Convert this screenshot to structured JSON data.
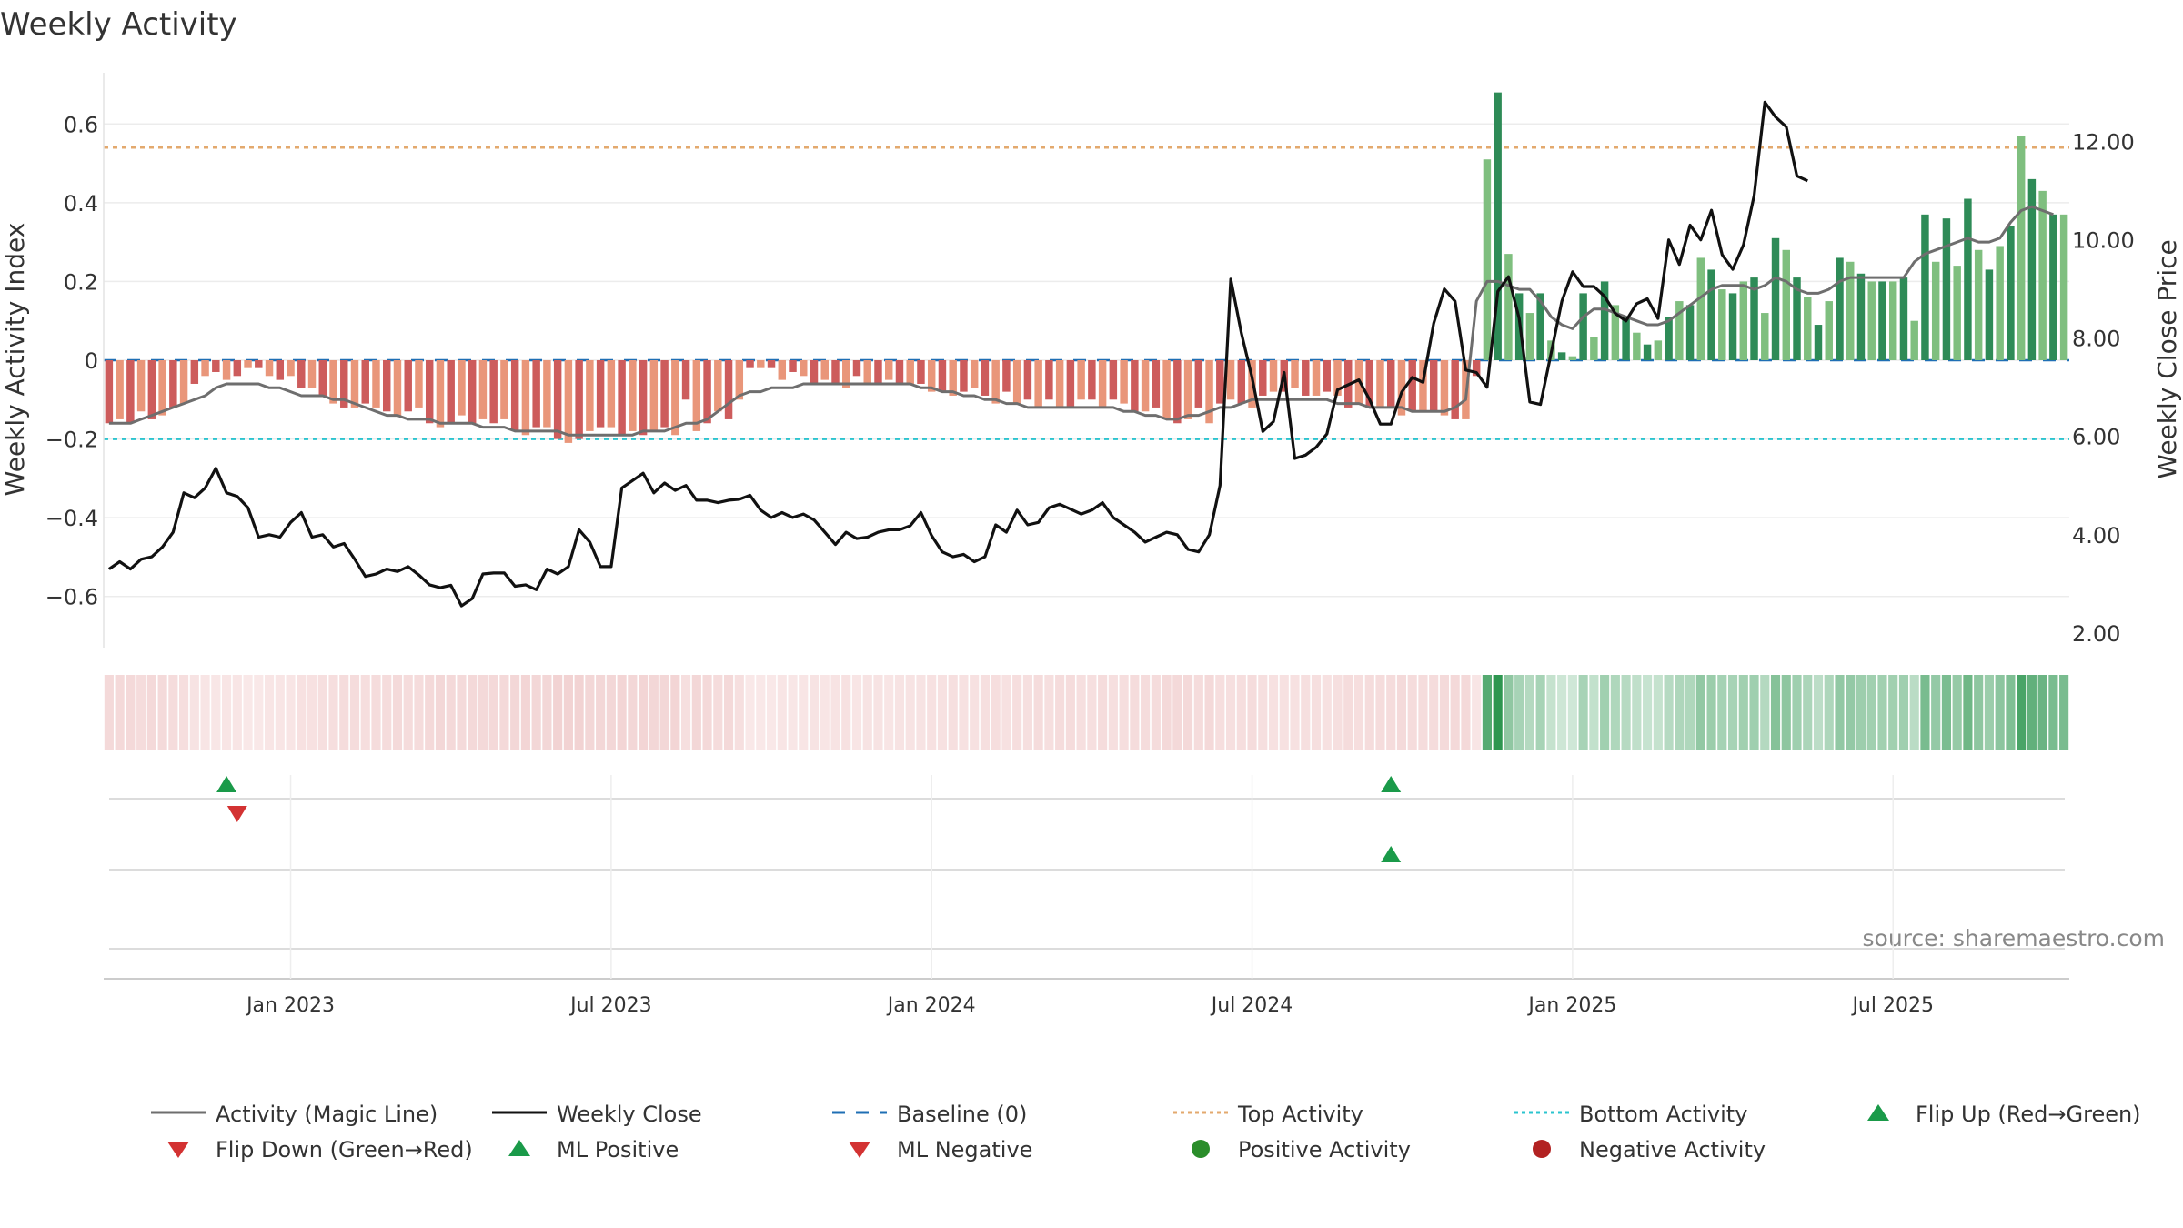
{
  "chart_data": {
    "type": "bar",
    "title": "Weekly Activity",
    "ylabel": "Weekly Activity Index",
    "y2label": "Weekly Close Price",
    "source": "source: sharemaestro.com",
    "ylim": [
      -0.73,
      0.73
    ],
    "y2lim": [
      1.7,
      13.4
    ],
    "yticks": [
      {
        "v": 0.6,
        "label": "0.6"
      },
      {
        "v": 0.4,
        "label": "0.4"
      },
      {
        "v": 0.2,
        "label": "0.2"
      },
      {
        "v": 0,
        "label": "0"
      },
      {
        "v": -0.2,
        "label": "−0.2"
      },
      {
        "v": -0.4,
        "label": "−0.4"
      },
      {
        "v": -0.6,
        "label": "−0.6"
      }
    ],
    "y2ticks": [
      {
        "v": 12,
        "label": "12.00"
      },
      {
        "v": 10,
        "label": "10.00"
      },
      {
        "v": 8,
        "label": "8.00"
      },
      {
        "v": 6,
        "label": "6.00"
      },
      {
        "v": 4,
        "label": "4.00"
      },
      {
        "v": 2,
        "label": "2.00"
      }
    ],
    "xticks": [
      {
        "week": 17,
        "label": "Jan 2023"
      },
      {
        "week": 47,
        "label": "Jul 2023"
      },
      {
        "week": 77,
        "label": "Jan 2024"
      },
      {
        "week": 107,
        "label": "Jul 2024"
      },
      {
        "week": 137,
        "label": "Jan 2025"
      },
      {
        "week": 167,
        "label": "Jul 2025"
      }
    ],
    "top_activity": 0.54,
    "bottom_activity": -0.2,
    "activity": [
      -0.16,
      -0.15,
      -0.16,
      -0.13,
      -0.15,
      -0.14,
      -0.12,
      -0.11,
      -0.06,
      -0.04,
      -0.03,
      -0.05,
      -0.04,
      -0.02,
      -0.02,
      -0.04,
      -0.05,
      -0.04,
      -0.07,
      -0.07,
      -0.09,
      -0.11,
      -0.12,
      -0.12,
      -0.11,
      -0.12,
      -0.13,
      -0.14,
      -0.13,
      -0.12,
      -0.16,
      -0.17,
      -0.16,
      -0.14,
      -0.16,
      -0.15,
      -0.16,
      -0.15,
      -0.18,
      -0.19,
      -0.17,
      -0.17,
      -0.2,
      -0.21,
      -0.2,
      -0.18,
      -0.17,
      -0.17,
      -0.19,
      -0.18,
      -0.19,
      -0.18,
      -0.17,
      -0.19,
      -0.1,
      -0.18,
      -0.16,
      -0.13,
      -0.15,
      -0.1,
      -0.02,
      -0.02,
      -0.02,
      -0.05,
      -0.03,
      -0.04,
      -0.06,
      -0.05,
      -0.06,
      -0.07,
      -0.04,
      -0.06,
      -0.06,
      -0.05,
      -0.06,
      -0.06,
      -0.06,
      -0.08,
      -0.08,
      -0.09,
      -0.08,
      -0.07,
      -0.09,
      -0.11,
      -0.08,
      -0.11,
      -0.1,
      -0.12,
      -0.1,
      -0.12,
      -0.12,
      -0.1,
      -0.1,
      -0.12,
      -0.1,
      -0.11,
      -0.13,
      -0.13,
      -0.12,
      -0.15,
      -0.16,
      -0.15,
      -0.12,
      -0.16,
      -0.11,
      -0.1,
      -0.11,
      -0.12,
      -0.09,
      -0.08,
      -0.08,
      -0.07,
      -0.09,
      -0.09,
      -0.08,
      -0.09,
      -0.12,
      -0.11,
      -0.12,
      -0.12,
      -0.12,
      -0.14,
      -0.13,
      -0.13,
      -0.13,
      -0.14,
      -0.15,
      -0.15,
      -0.04,
      0.51,
      0.68,
      0.27,
      0.17,
      0.12,
      0.17,
      0.05,
      0.02,
      0.01,
      0.17,
      0.06,
      0.2,
      0.14,
      0.11,
      0.07,
      0.04,
      0.05,
      0.11,
      0.15,
      0.14,
      0.26,
      0.23,
      0.18,
      0.17,
      0.2,
      0.21,
      0.12,
      0.31,
      0.28,
      0.21,
      0.16,
      0.09,
      0.15,
      0.26,
      0.25,
      0.22,
      0.2,
      0.2,
      0.2,
      0.21,
      0.1,
      0.37,
      0.25,
      0.36,
      0.24,
      0.41,
      0.28,
      0.23,
      0.29,
      0.34,
      0.57,
      0.46,
      0.43,
      0.37,
      0.37
    ],
    "magic_line": [
      -0.16,
      -0.16,
      -0.16,
      -0.15,
      -0.14,
      -0.13,
      -0.12,
      -0.11,
      -0.1,
      -0.09,
      -0.07,
      -0.06,
      -0.06,
      -0.06,
      -0.06,
      -0.07,
      -0.07,
      -0.08,
      -0.09,
      -0.09,
      -0.09,
      -0.1,
      -0.1,
      -0.11,
      -0.12,
      -0.13,
      -0.14,
      -0.14,
      -0.15,
      -0.15,
      -0.15,
      -0.16,
      -0.16,
      -0.16,
      -0.16,
      -0.17,
      -0.17,
      -0.17,
      -0.18,
      -0.18,
      -0.18,
      -0.18,
      -0.18,
      -0.19,
      -0.19,
      -0.19,
      -0.19,
      -0.19,
      -0.19,
      -0.19,
      -0.18,
      -0.18,
      -0.18,
      -0.17,
      -0.16,
      -0.16,
      -0.15,
      -0.13,
      -0.11,
      -0.09,
      -0.08,
      -0.08,
      -0.07,
      -0.07,
      -0.07,
      -0.06,
      -0.06,
      -0.06,
      -0.06,
      -0.06,
      -0.06,
      -0.06,
      -0.06,
      -0.06,
      -0.06,
      -0.06,
      -0.07,
      -0.07,
      -0.08,
      -0.08,
      -0.09,
      -0.09,
      -0.1,
      -0.1,
      -0.11,
      -0.11,
      -0.12,
      -0.12,
      -0.12,
      -0.12,
      -0.12,
      -0.12,
      -0.12,
      -0.12,
      -0.12,
      -0.13,
      -0.13,
      -0.14,
      -0.14,
      -0.15,
      -0.15,
      -0.14,
      -0.14,
      -0.13,
      -0.12,
      -0.12,
      -0.11,
      -0.1,
      -0.1,
      -0.1,
      -0.1,
      -0.1,
      -0.1,
      -0.1,
      -0.1,
      -0.11,
      -0.11,
      -0.11,
      -0.12,
      -0.12,
      -0.12,
      -0.12,
      -0.13,
      -0.13,
      -0.13,
      -0.13,
      -0.12,
      -0.1,
      0.15,
      0.2,
      0.2,
      0.19,
      0.18,
      0.18,
      0.15,
      0.11,
      0.09,
      0.08,
      0.11,
      0.13,
      0.13,
      0.12,
      0.11,
      0.1,
      0.09,
      0.09,
      0.1,
      0.12,
      0.14,
      0.16,
      0.18,
      0.19,
      0.19,
      0.19,
      0.18,
      0.19,
      0.21,
      0.2,
      0.18,
      0.17,
      0.17,
      0.18,
      0.2,
      0.21,
      0.21,
      0.21,
      0.21,
      0.21,
      0.21,
      0.25,
      0.27,
      0.28,
      0.29,
      0.3,
      0.31,
      0.3,
      0.3,
      0.31,
      0.35,
      0.38,
      0.39,
      0.38,
      0.37
    ],
    "close": [
      3.3,
      3.45,
      3.3,
      3.5,
      3.55,
      3.75,
      4.05,
      4.85,
      4.75,
      4.95,
      5.35,
      4.85,
      4.78,
      4.55,
      3.95,
      4.0,
      3.95,
      4.25,
      4.45,
      3.95,
      4.0,
      3.75,
      3.82,
      3.5,
      3.15,
      3.2,
      3.3,
      3.25,
      3.35,
      3.18,
      2.98,
      2.92,
      2.97,
      2.55,
      2.7,
      3.2,
      3.22,
      3.22,
      2.95,
      2.98,
      2.88,
      3.3,
      3.2,
      3.35,
      4.1,
      3.85,
      3.35,
      3.35,
      4.95,
      5.1,
      5.25,
      4.85,
      5.05,
      4.9,
      5.0,
      4.7,
      4.7,
      4.65,
      4.7,
      4.72,
      4.8,
      4.5,
      4.35,
      4.45,
      4.35,
      4.42,
      4.3,
      4.05,
      3.8,
      4.05,
      3.92,
      3.95,
      4.05,
      4.1,
      4.1,
      4.18,
      4.45,
      3.98,
      3.65,
      3.55,
      3.6,
      3.45,
      3.55,
      4.2,
      4.05,
      4.5,
      4.2,
      4.25,
      4.55,
      4.62,
      4.52,
      4.42,
      4.5,
      4.65,
      4.35,
      4.2,
      4.05,
      3.85,
      3.95,
      4.05,
      4.0,
      3.7,
      3.65,
      4.0,
      5.0,
      9.2,
      8.1,
      7.2,
      6.1,
      6.3,
      7.3,
      5.55,
      5.62,
      5.78,
      6.05,
      6.95,
      7.05,
      7.15,
      6.75,
      6.25,
      6.25,
      6.9,
      7.2,
      7.1,
      8.3,
      9.0,
      8.75,
      7.35,
      7.3,
      7.0,
      8.95,
      9.25,
      8.4,
      6.7,
      6.65,
      7.7,
      8.75,
      9.35,
      9.05,
      9.05,
      8.85,
      8.5,
      8.35,
      8.7,
      8.8,
      8.4,
      10.0,
      9.5,
      10.3,
      10.0,
      10.6,
      9.7,
      9.4,
      9.9,
      10.9,
      12.8,
      12.5,
      12.3,
      11.3,
      11.2
    ],
    "flip_up_weeks": [
      11,
      120
    ],
    "flip_down_weeks": [
      12
    ],
    "ml_positive_weeks": [
      120
    ],
    "ml_negative_weeks": [],
    "legend": [
      {
        "label": "Activity (Magic Line)",
        "marker": "line-solid",
        "color": "#6e6e6e"
      },
      {
        "label": "Weekly Close",
        "marker": "line-solid",
        "color": "#111111"
      },
      {
        "label": "Baseline (0)",
        "marker": "line-dashed",
        "color": "#1f6fb4"
      },
      {
        "label": "Top Activity",
        "marker": "line-dotted",
        "color": "#e3a96e"
      },
      {
        "label": "Bottom Activity",
        "marker": "line-dotted",
        "color": "#2bc4cf"
      },
      {
        "label": "Flip Up (Red→Green)",
        "marker": "triangle-up",
        "color": "#1a9a49"
      },
      {
        "label": "Flip Down (Green→Red)",
        "marker": "triangle-down",
        "color": "#d33232"
      },
      {
        "label": "ML Positive",
        "marker": "triangle-up",
        "color": "#1a9a49"
      },
      {
        "label": "ML Negative",
        "marker": "triangle-down",
        "color": "#d33232"
      },
      {
        "label": "Positive Activity",
        "marker": "circle",
        "color": "#2a8d2a"
      },
      {
        "label": "Negative Activity",
        "marker": "circle",
        "color": "#b22222"
      }
    ],
    "colors": {
      "pos_strong": "#2e8b57",
      "pos_light": "#7fbf7f",
      "neg_strong": "#cd5c5c",
      "neg_light": "#e9967a",
      "magic_line": "#6e6e6e",
      "close": "#111111",
      "baseline": "#1f6fb4",
      "top": "#e3a96e",
      "bottom": "#2bc4cf",
      "up": "#1a9a49",
      "down": "#d33232"
    }
  }
}
